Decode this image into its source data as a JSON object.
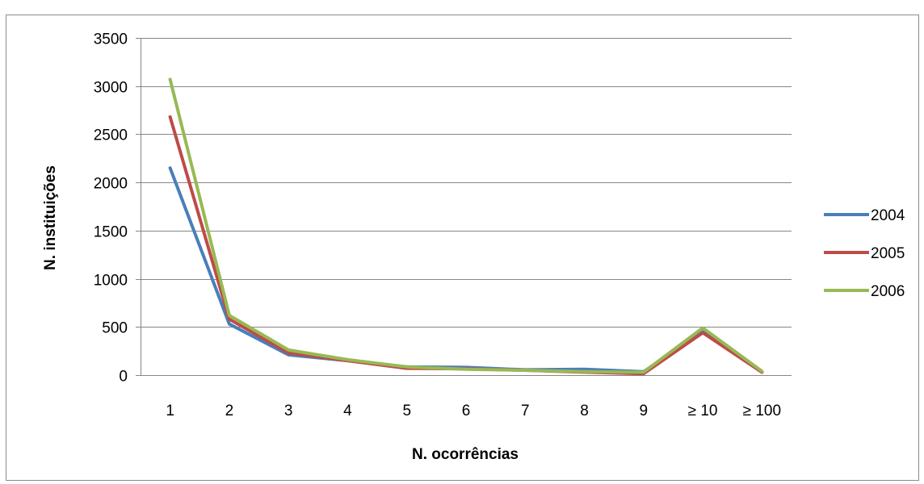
{
  "chart_data": {
    "type": "line",
    "title": "",
    "xlabel": "N. ocorrências",
    "ylabel": "N. instituições",
    "categories": [
      "1",
      "2",
      "3",
      "4",
      "5",
      "6",
      "7",
      "8",
      "9",
      "≥ 10",
      "≥ 100"
    ],
    "y_ticks": [
      "0",
      "500",
      "1000",
      "1500",
      "2000",
      "2500",
      "3000",
      "3500"
    ],
    "ylim": [
      0,
      3500
    ],
    "grid": "horizontal",
    "legend_position": "right",
    "series": [
      {
        "name": "2004",
        "color": "#4a7ebb",
        "values": [
          2150,
          530,
          210,
          150,
          85,
          80,
          55,
          60,
          35,
          450,
          35
        ]
      },
      {
        "name": "2005",
        "color": "#be4b48",
        "values": [
          2680,
          580,
          230,
          150,
          70,
          65,
          50,
          30,
          15,
          440,
          30
        ]
      },
      {
        "name": "2006",
        "color": "#98b954",
        "values": [
          3070,
          620,
          260,
          160,
          85,
          60,
          50,
          35,
          30,
          490,
          40
        ]
      }
    ]
  }
}
